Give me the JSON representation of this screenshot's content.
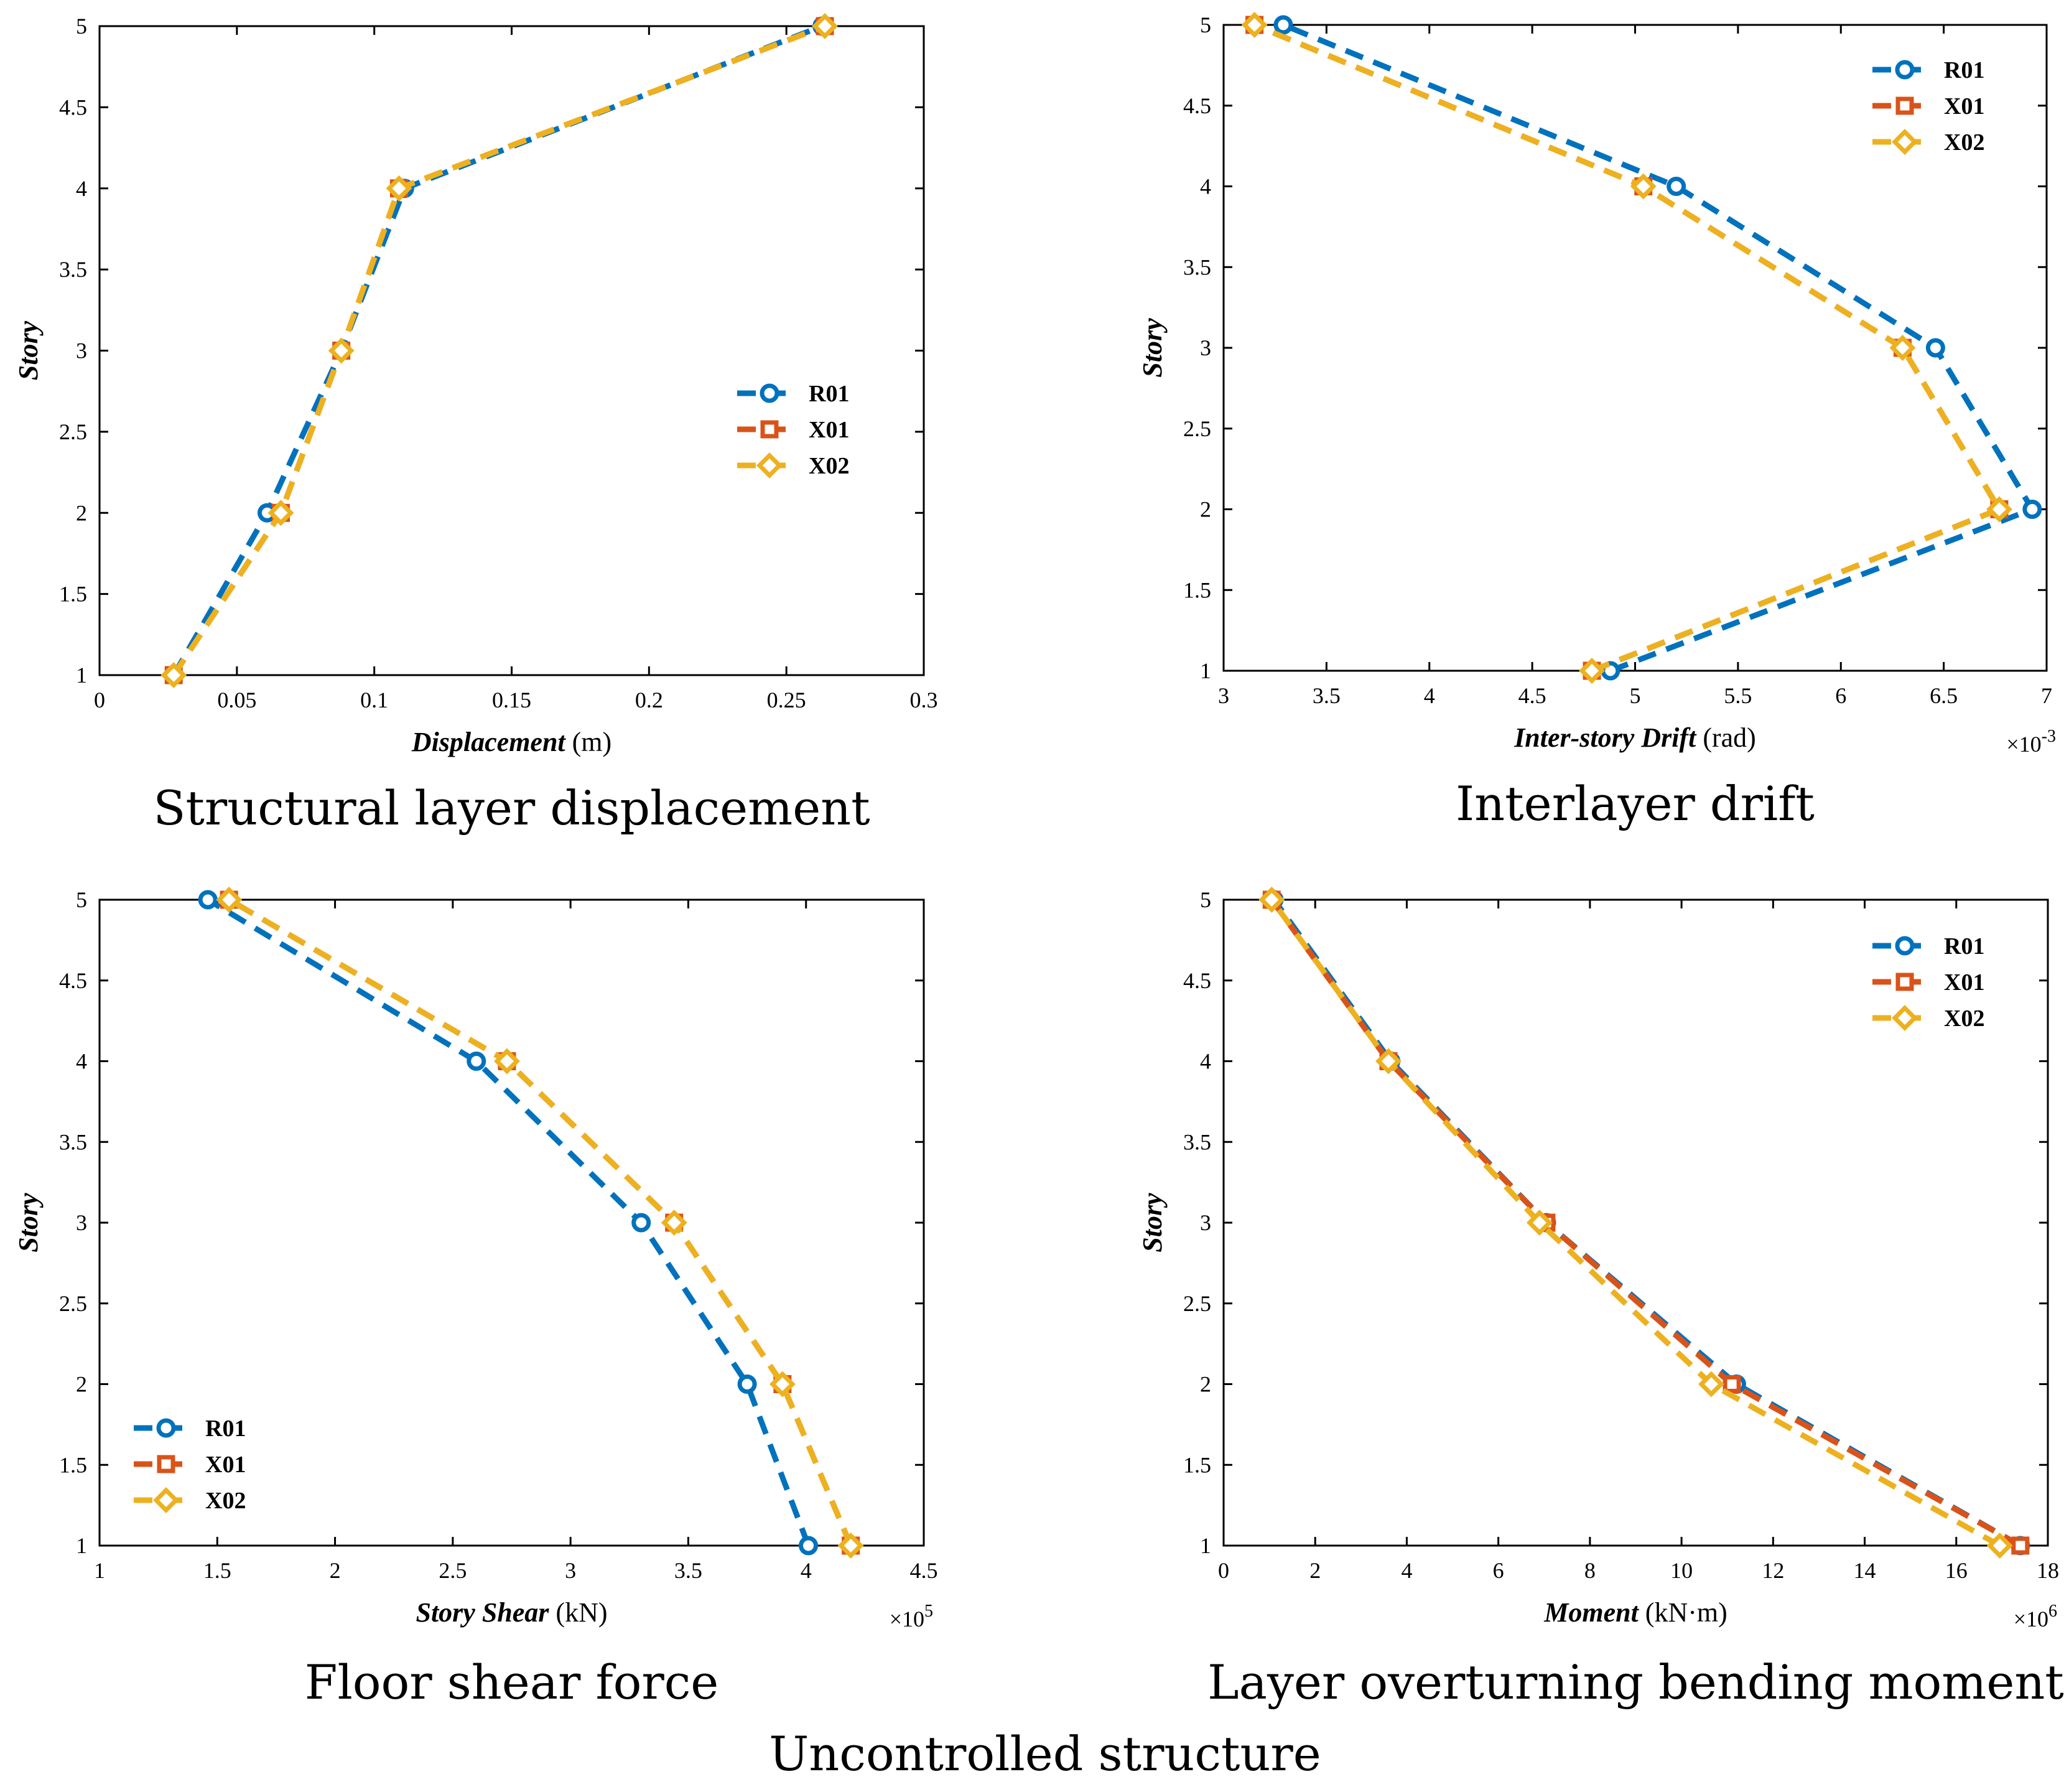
{
  "figure_caption": "Uncontrolled structure",
  "colors": {
    "R01": "#0072BD",
    "X01": "#D95319",
    "X02": "#EDB120"
  },
  "chart_data": [
    {
      "id": "displacement",
      "type": "line",
      "caption": "Structural layer displacement",
      "xlabel": "Displacement",
      "xunit": " (m)",
      "ylabel": "Story",
      "xlim": [
        0,
        0.3
      ],
      "xticks": [
        0,
        0.05,
        0.1,
        0.15,
        0.2,
        0.25,
        0.3
      ],
      "xtick_labels": [
        "0",
        "0.05",
        "0.1",
        "0.15",
        "0.2",
        "0.25",
        "0.3"
      ],
      "ylim": [
        1,
        5
      ],
      "yticks": [
        1,
        1.5,
        2,
        2.5,
        3,
        3.5,
        4,
        4.5,
        5
      ],
      "ytick_labels": [
        "1",
        "1.5",
        "2",
        "2.5",
        "3",
        "3.5",
        "4",
        "4.5",
        "5"
      ],
      "x_multiplier": "",
      "legend_position": "middle-right",
      "series": [
        {
          "name": "R01",
          "marker": "circle",
          "y": [
            1,
            2,
            3,
            4,
            5
          ],
          "x": [
            0.027,
            0.061,
            0.088,
            0.111,
            0.263
          ]
        },
        {
          "name": "X01",
          "marker": "square",
          "y": [
            1,
            2,
            3,
            4,
            5
          ],
          "x": [
            0.027,
            0.066,
            0.088,
            0.109,
            0.264
          ]
        },
        {
          "name": "X02",
          "marker": "diamond",
          "y": [
            1,
            2,
            3,
            4,
            5
          ],
          "x": [
            0.027,
            0.066,
            0.088,
            0.109,
            0.264
          ]
        }
      ]
    },
    {
      "id": "drift",
      "type": "line",
      "caption": "Interlayer drift",
      "xlabel": "Inter-story Drift",
      "xunit": " (rad)",
      "ylabel": "Story",
      "xlim": [
        3,
        7
      ],
      "xticks": [
        3,
        3.5,
        4,
        4.5,
        5,
        5.5,
        6,
        6.5,
        7
      ],
      "xtick_labels": [
        "3",
        "3.5",
        "4",
        "4.5",
        "5",
        "5.5",
        "6",
        "6.5",
        "7"
      ],
      "ylim": [
        1,
        5
      ],
      "yticks": [
        1,
        1.5,
        2,
        2.5,
        3,
        3.5,
        4,
        4.5,
        5
      ],
      "ytick_labels": [
        "1",
        "1.5",
        "2",
        "2.5",
        "3",
        "3.5",
        "4",
        "4.5",
        "5"
      ],
      "x_multiplier": "×10",
      "x_multiplier_exp": "-3",
      "legend_position": "top-right",
      "series": [
        {
          "name": "R01",
          "marker": "circle",
          "y": [
            1,
            2,
            3,
            4,
            5
          ],
          "x": [
            4.88,
            6.93,
            6.46,
            5.2,
            3.29
          ]
        },
        {
          "name": "X01",
          "marker": "square",
          "y": [
            1,
            2,
            3,
            4,
            5
          ],
          "x": [
            4.79,
            6.77,
            6.3,
            5.04,
            3.15
          ]
        },
        {
          "name": "X02",
          "marker": "diamond",
          "y": [
            1,
            2,
            3,
            4,
            5
          ],
          "x": [
            4.79,
            6.77,
            6.3,
            5.04,
            3.15
          ]
        }
      ]
    },
    {
      "id": "shear",
      "type": "line",
      "caption": "Floor shear force",
      "xlabel": "Story Shear",
      "xunit": " (kN)",
      "ylabel": "Story",
      "xlim": [
        1,
        4.5
      ],
      "xticks": [
        1,
        1.5,
        2,
        2.5,
        3,
        3.5,
        4,
        4.5
      ],
      "xtick_labels": [
        "1",
        "1.5",
        "2",
        "2.5",
        "3",
        "3.5",
        "4",
        "4.5"
      ],
      "ylim": [
        1,
        5
      ],
      "yticks": [
        1,
        1.5,
        2,
        2.5,
        3,
        3.5,
        4,
        4.5,
        5
      ],
      "ytick_labels": [
        "1",
        "1.5",
        "2",
        "2.5",
        "3",
        "3.5",
        "4",
        "4.5",
        "5"
      ],
      "x_multiplier": "×10",
      "x_multiplier_exp": "5",
      "legend_position": "bottom-left",
      "series": [
        {
          "name": "R01",
          "marker": "circle",
          "y": [
            1,
            2,
            3,
            4,
            5
          ],
          "x": [
            4.01,
            3.75,
            3.3,
            2.6,
            1.46
          ]
        },
        {
          "name": "X01",
          "marker": "square",
          "y": [
            1,
            2,
            3,
            4,
            5
          ],
          "x": [
            4.19,
            3.9,
            3.44,
            2.73,
            1.55
          ]
        },
        {
          "name": "X02",
          "marker": "diamond",
          "y": [
            1,
            2,
            3,
            4,
            5
          ],
          "x": [
            4.19,
            3.9,
            3.44,
            2.73,
            1.55
          ]
        }
      ]
    },
    {
      "id": "moment",
      "type": "line",
      "caption": "Layer overturning bending moment",
      "xlabel": "Moment",
      "xunit": " (kN·m)",
      "ylabel": "Story",
      "xlim": [
        0,
        18
      ],
      "xticks": [
        0,
        2,
        4,
        6,
        8,
        10,
        12,
        14,
        16,
        18
      ],
      "xtick_labels": [
        "0",
        "2",
        "4",
        "6",
        "8",
        "10",
        "12",
        "14",
        "16",
        "18"
      ],
      "ylim": [
        1,
        5
      ],
      "yticks": [
        1,
        1.5,
        2,
        2.5,
        3,
        3.5,
        4,
        4.5,
        5
      ],
      "ytick_labels": [
        "1",
        "1.5",
        "2",
        "2.5",
        "3",
        "3.5",
        "4",
        "4.5",
        "5"
      ],
      "x_multiplier": "×10",
      "x_multiplier_exp": "6",
      "legend_position": "top-right",
      "series": [
        {
          "name": "R01",
          "marker": "circle",
          "y": [
            1,
            2,
            3,
            4,
            5
          ],
          "x": [
            17.4,
            11.2,
            7.05,
            3.65,
            1.1
          ]
        },
        {
          "name": "X01",
          "marker": "square",
          "y": [
            1,
            2,
            3,
            4,
            5
          ],
          "x": [
            17.4,
            11.1,
            7.05,
            3.6,
            1.05
          ]
        },
        {
          "name": "X02",
          "marker": "diamond",
          "y": [
            1,
            2,
            3,
            4,
            5
          ],
          "x": [
            16.95,
            10.65,
            6.9,
            3.6,
            1.05
          ]
        }
      ]
    }
  ]
}
